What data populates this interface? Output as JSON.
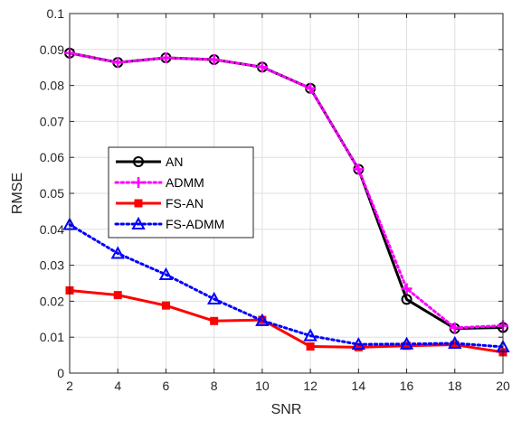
{
  "chart_data": {
    "type": "line",
    "xlabel": "SNR",
    "ylabel": "RMSE",
    "xlim": [
      2,
      20
    ],
    "ylim": [
      0,
      0.1
    ],
    "x_ticks": [
      "2",
      "4",
      "6",
      "8",
      "10",
      "12",
      "14",
      "16",
      "18",
      "20"
    ],
    "y_ticks": [
      "0",
      "0.01",
      "0.02",
      "0.03",
      "0.04",
      "0.05",
      "0.06",
      "0.07",
      "0.08",
      "0.09",
      "0.1"
    ],
    "grid": true,
    "legend_position": "left-middle",
    "x": [
      2,
      4,
      6,
      8,
      10,
      12,
      14,
      16,
      18,
      20
    ],
    "series": [
      {
        "name": "AN",
        "color": "#000000",
        "line_style": "solid",
        "marker": "circle",
        "values": [
          0.089,
          0.0864,
          0.0877,
          0.0872,
          0.0851,
          0.0792,
          0.0567,
          0.0205,
          0.0124,
          0.0127
        ]
      },
      {
        "name": "ADMM",
        "color": "#ff00ff",
        "line_style": "dotted",
        "marker": "plus",
        "values": [
          0.089,
          0.0864,
          0.0877,
          0.0872,
          0.0851,
          0.0792,
          0.0567,
          0.0235,
          0.0126,
          0.0132
        ]
      },
      {
        "name": "FS-AN",
        "color": "#ff0000",
        "line_style": "solid",
        "marker": "square",
        "values": [
          0.023,
          0.0217,
          0.0188,
          0.0145,
          0.0148,
          0.0074,
          0.0072,
          0.0076,
          0.0079,
          0.0058
        ]
      },
      {
        "name": "FS-ADMM",
        "color": "#0000ff",
        "line_style": "dotted",
        "marker": "triangle",
        "values": [
          0.0413,
          0.0333,
          0.0274,
          0.0206,
          0.0146,
          0.0104,
          0.008,
          0.0081,
          0.0083,
          0.0073
        ]
      }
    ]
  }
}
